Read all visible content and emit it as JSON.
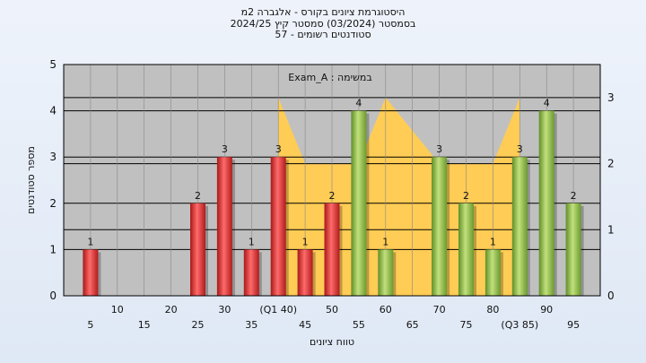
{
  "chart_data": {
    "type": "bar",
    "title_lines": [
      "היסטוגרמת ציונים בקורס - אלגברה 2מ",
      "בסמסטר (03/2024) סמסטר קיץ 2024/25",
      "סטודנטים רשומים - 57"
    ],
    "annotation": "במשימה : Exam_A",
    "xlabel": "טווח ציונים",
    "ylabel": "מספר סטודנטים",
    "ylim": [
      0,
      5
    ],
    "y_ticks": [
      "0",
      "1",
      "2",
      "3",
      "4",
      "5"
    ],
    "y2lim": [
      0,
      3.5
    ],
    "y2_ticks": [
      "0",
      "1",
      "2",
      "3"
    ],
    "grid": true,
    "categories": [
      "5",
      "10",
      "15",
      "20",
      "25",
      "30",
      "35",
      "(Q1 40)",
      "45",
      "50",
      "55",
      "60",
      "65",
      "70",
      "75",
      "80",
      "(Q3 85)",
      "90",
      "95"
    ],
    "values": [
      1,
      0,
      0,
      0,
      2,
      3,
      1,
      3,
      1,
      2,
      4,
      1,
      0,
      3,
      2,
      1,
      3,
      4,
      2
    ],
    "bar_colors": [
      "#e23b3b",
      "#e23b3b",
      "#e23b3b",
      "#e23b3b",
      "#e23b3b",
      "#e23b3b",
      "#e23b3b",
      "#e23b3b",
      "#e23b3b",
      "#e23b3b",
      "#8fc04a",
      "#8fc04a",
      "#8fc04a",
      "#8fc04a",
      "#8fc04a",
      "#8fc04a",
      "#8fc04a",
      "#8fc04a",
      "#8fc04a"
    ],
    "area_series": {
      "x_categories": [
        "(Q1 40)",
        "45",
        "50",
        "55",
        "60",
        "65",
        "70",
        "75",
        "80",
        "(Q3 85)"
      ],
      "values": [
        3,
        2,
        2,
        2,
        3,
        2.5,
        2,
        2,
        2,
        3
      ]
    },
    "colors": {
      "plot_bg": "#c0c0c0",
      "area": "#ffcc55",
      "red_bar": "#e23b3b",
      "green_bar": "#8fc04a"
    }
  }
}
